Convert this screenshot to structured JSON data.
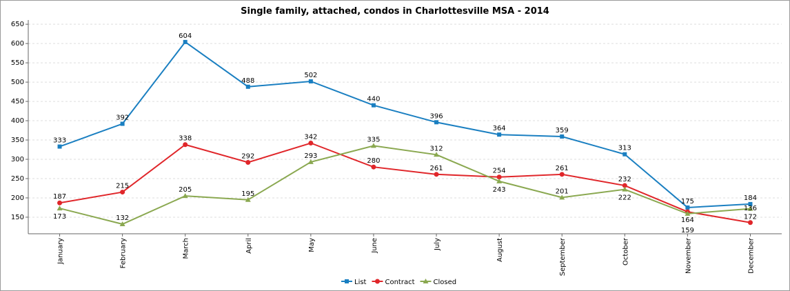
{
  "chart_data": {
    "type": "line",
    "title": "Single family, attached, condos in Charlottesville MSA - 2014",
    "categories": [
      "January",
      "February",
      "March",
      "April",
      "May",
      "June",
      "July",
      "August",
      "September",
      "October",
      "November",
      "December"
    ],
    "yticks": [
      150,
      200,
      250,
      300,
      350,
      400,
      450,
      500,
      550,
      600,
      650
    ],
    "ylim": [
      107,
      661
    ],
    "grid": "horizontal dashed",
    "legend_position": "bottom",
    "series": [
      {
        "name": "List",
        "color": "#1a7fc1",
        "marker": "square",
        "values": [
          333,
          392,
          604,
          488,
          502,
          440,
          396,
          364,
          359,
          313,
          175,
          184
        ]
      },
      {
        "name": "Contract",
        "color": "#e0262a",
        "marker": "circle",
        "values": [
          187,
          215,
          338,
          292,
          342,
          280,
          261,
          254,
          261,
          232,
          164,
          136
        ]
      },
      {
        "name": "Closed",
        "color": "#8aa850",
        "marker": "triangle",
        "values": [
          173,
          132,
          205,
          195,
          293,
          335,
          312,
          243,
          201,
          222,
          159,
          172
        ]
      }
    ]
  }
}
